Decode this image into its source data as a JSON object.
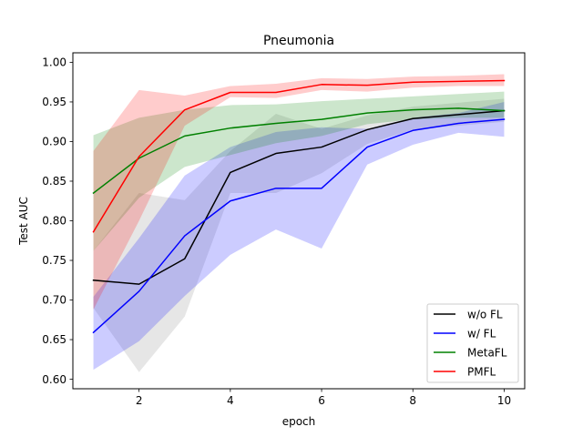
{
  "chart_data": {
    "type": "line",
    "title": "Pneumonia",
    "xlabel": "epoch",
    "ylabel": "Test AUC",
    "xlim": [
      0.55,
      10.45
    ],
    "ylim": [
      0.588,
      1.012
    ],
    "xticks": [
      2,
      4,
      6,
      8,
      10
    ],
    "yticks": [
      0.6,
      0.65,
      0.7,
      0.75,
      0.8,
      0.85,
      0.9,
      0.95,
      1.0
    ],
    "ytick_labels": [
      "0.60",
      "0.65",
      "0.70",
      "0.75",
      "0.80",
      "0.85",
      "0.90",
      "0.95",
      "1.00"
    ],
    "grid": false,
    "legend_position": "bottom-right",
    "x": [
      1,
      2,
      3,
      4,
      5,
      6,
      7,
      8,
      9,
      10
    ],
    "series": [
      {
        "name": "w/o FL",
        "color": "#000000",
        "band_color": "#808080",
        "values": [
          0.725,
          0.72,
          0.752,
          0.861,
          0.885,
          0.893,
          0.915,
          0.929,
          0.934,
          0.939
        ],
        "lower": [
          0.69,
          0.609,
          0.679,
          0.835,
          0.835,
          0.86,
          0.897,
          0.915,
          0.92,
          0.925
        ],
        "upper": [
          0.762,
          0.835,
          0.826,
          0.888,
          0.935,
          0.916,
          0.933,
          0.944,
          0.949,
          0.954
        ]
      },
      {
        "name": "w/ FL",
        "color": "#0000ff",
        "band_color": "#0000ff",
        "values": [
          0.659,
          0.711,
          0.781,
          0.825,
          0.841,
          0.841,
          0.893,
          0.914,
          0.923,
          0.928
        ],
        "lower": [
          0.612,
          0.648,
          0.705,
          0.757,
          0.789,
          0.765,
          0.871,
          0.896,
          0.911,
          0.906
        ],
        "upper": [
          0.704,
          0.778,
          0.857,
          0.893,
          0.912,
          0.918,
          0.916,
          0.93,
          0.936,
          0.95
        ]
      },
      {
        "name": "MetaFL",
        "color": "#008000",
        "band_color": "#008000",
        "values": [
          0.835,
          0.879,
          0.907,
          0.917,
          0.923,
          0.928,
          0.936,
          0.94,
          0.942,
          0.939
        ],
        "lower": [
          0.762,
          0.829,
          0.868,
          0.883,
          0.898,
          0.907,
          0.922,
          0.928,
          0.93,
          0.93
        ],
        "upper": [
          0.908,
          0.93,
          0.94,
          0.946,
          0.947,
          0.951,
          0.954,
          0.957,
          0.96,
          0.963
        ]
      },
      {
        "name": "PMFL",
        "color": "#ff0000",
        "band_color": "#ff0000",
        "values": [
          0.786,
          0.881,
          0.94,
          0.962,
          0.962,
          0.972,
          0.971,
          0.975,
          0.976,
          0.977
        ],
        "lower": [
          0.688,
          0.8,
          0.92,
          0.956,
          0.955,
          0.965,
          0.963,
          0.968,
          0.97,
          0.97
        ],
        "upper": [
          0.888,
          0.965,
          0.958,
          0.97,
          0.973,
          0.98,
          0.979,
          0.982,
          0.983,
          0.985
        ]
      }
    ]
  }
}
